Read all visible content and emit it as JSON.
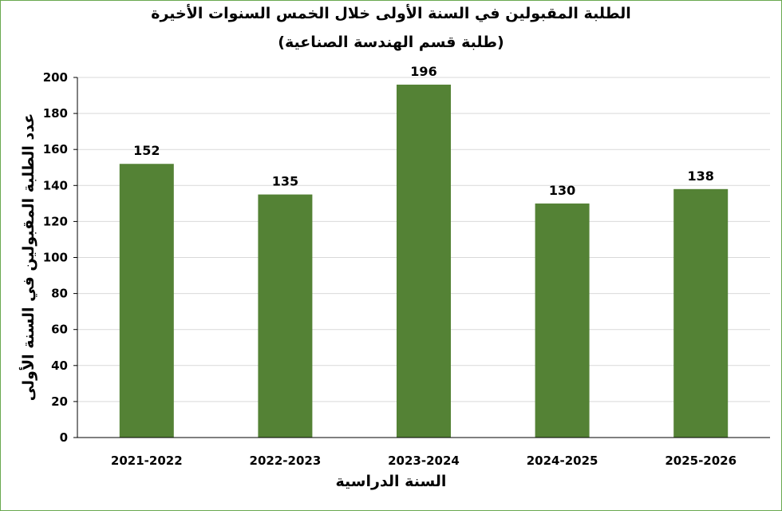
{
  "chart_data": {
    "type": "bar",
    "title": "الطلبة المقبولين في السنة الأولى خلال الخمس السنوات الأخيرة",
    "subtitle": "(طلبة قسم الهندسة الصناعية)",
    "xlabel": "السنة الدراسية",
    "ylabel": "عدد الطلبة المقبولين في السنة الأولى",
    "categories": [
      "2021-2022",
      "2022-2023",
      "2023-2024",
      "2024-2025",
      "2025-2026"
    ],
    "values": [
      152,
      135,
      196,
      130,
      138
    ],
    "ylim": [
      0,
      200
    ],
    "yticks": [
      0,
      20,
      40,
      60,
      80,
      100,
      120,
      140,
      160,
      180,
      200
    ],
    "grid": true,
    "legend": "none",
    "bar_color": "#548235",
    "grid_color": "#d9d9d9",
    "border_color": "#6aa84f"
  }
}
